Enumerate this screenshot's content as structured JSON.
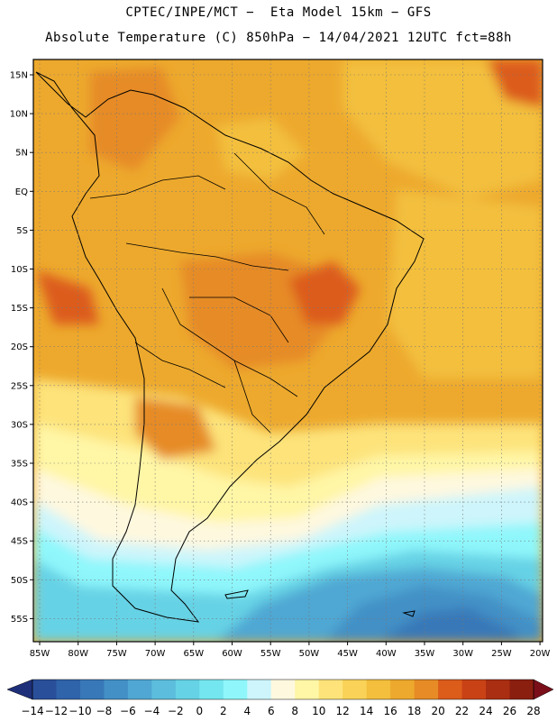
{
  "header": {
    "line1": "CPTEC/INPE/MCT −  Eta Model 15km − GFS",
    "line2": "Absolute Temperature (C) 850hPa − 14/04/2021 12UTC fct=88h"
  },
  "map": {
    "lat_labels": [
      "15N",
      "10N",
      "5N",
      "EQ",
      "5S",
      "10S",
      "15S",
      "20S",
      "25S",
      "30S",
      "35S",
      "40S",
      "45S",
      "50S",
      "55S"
    ],
    "lon_labels": [
      "85W",
      "80W",
      "75W",
      "70W",
      "65W",
      "60W",
      "55W",
      "50W",
      "45W",
      "40W",
      "35W",
      "30W",
      "25W",
      "20W"
    ]
  },
  "colorbar": {
    "labels": [
      "−14",
      "−12",
      "−10",
      "−8",
      "−6",
      "−4",
      "−2",
      "0",
      "2",
      "4",
      "6",
      "8",
      "10",
      "12",
      "14",
      "16",
      "18",
      "20",
      "22",
      "24",
      "26",
      "28"
    ],
    "colors": [
      "#2a4f9a",
      "#2f63aa",
      "#3878b8",
      "#4390c6",
      "#50a7d3",
      "#5cbedc",
      "#66d2e5",
      "#74e6ef",
      "#8ff7fb",
      "#cdf5fb",
      "#fef8df",
      "#fff6a6",
      "#fde37a",
      "#f9d257",
      "#f3bf3c",
      "#eda92d",
      "#e68b26",
      "#dc5c1a",
      "#c94216",
      "#aa2e12",
      "#8a1f10"
    ],
    "under_color": "#1e2f7a",
    "over_color": "#7a0f1a"
  }
}
